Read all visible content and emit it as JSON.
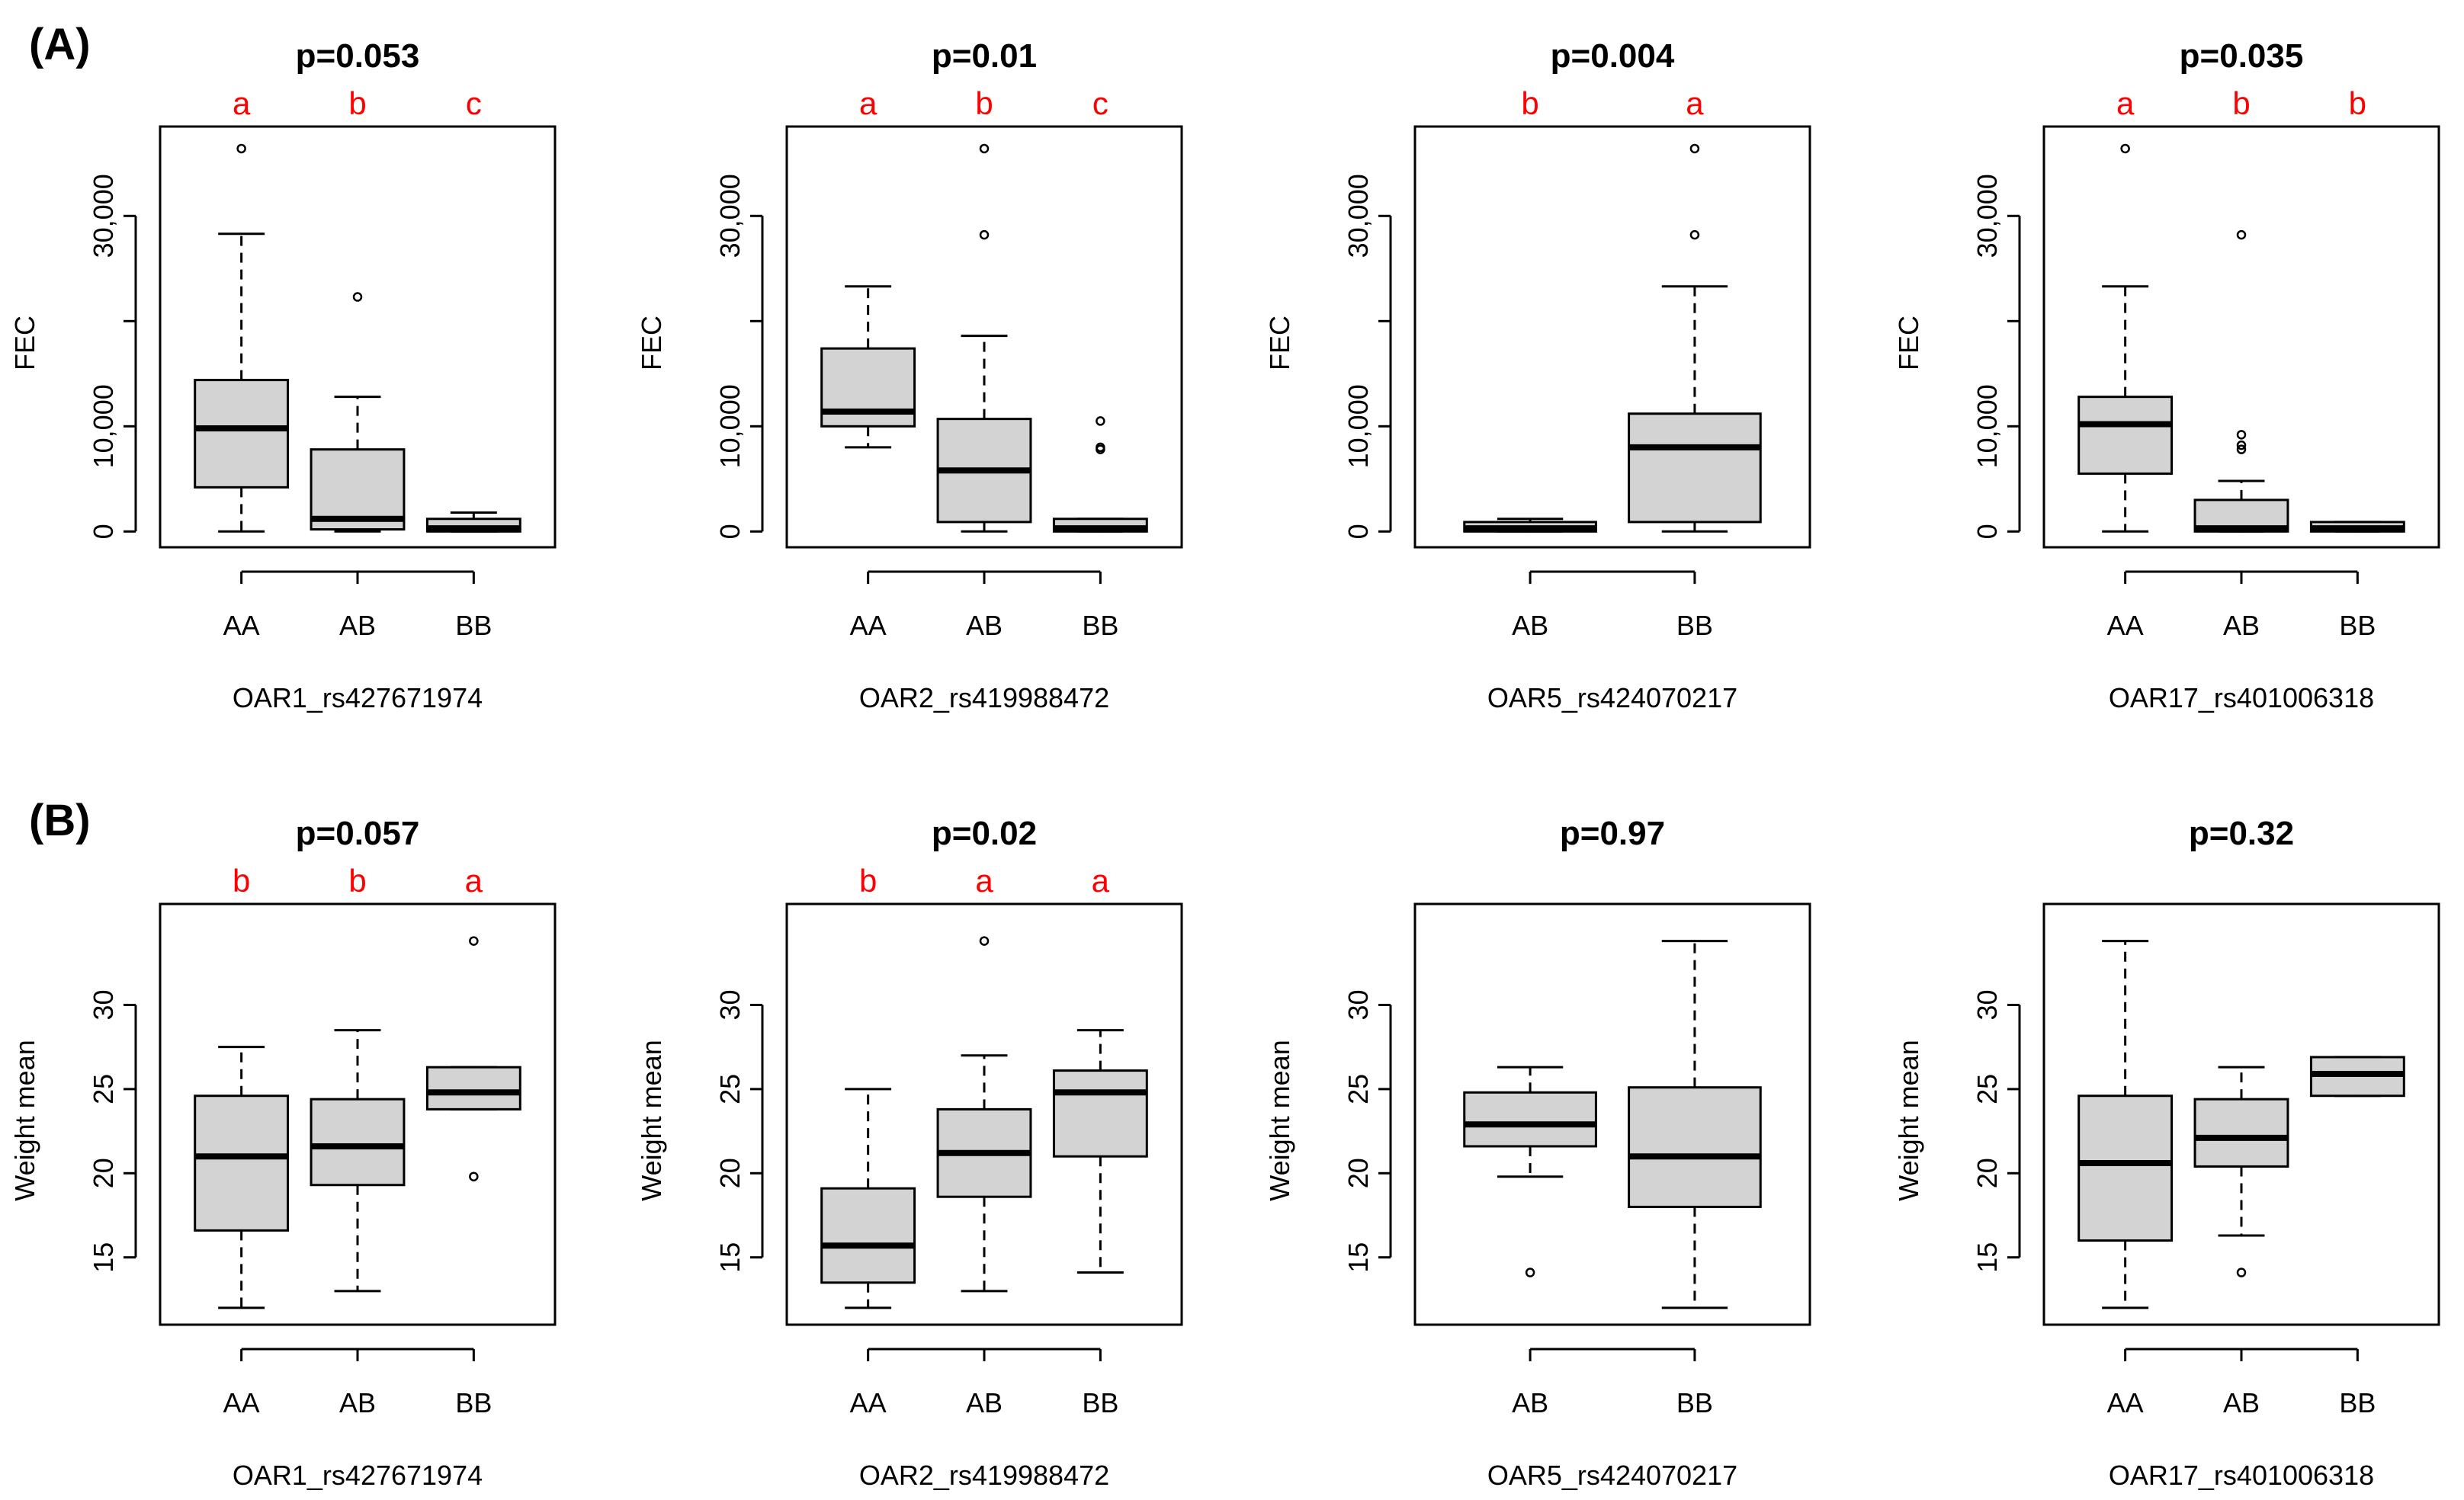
{
  "panel_labels": [
    "(A)",
    "(B)"
  ],
  "colors": {
    "box_fill": "#d3d3d3",
    "line": "#000000",
    "letter": "#ff0000",
    "text": "#000000"
  },
  "chart_data": [
    {
      "type": "boxplot",
      "row": 0,
      "col": 0,
      "title": "p=0.053",
      "xlabel": "OAR1_rs427671974",
      "ylabel": "FEC",
      "ylim": [
        -1500,
        38500
      ],
      "yticks": [
        0,
        10000,
        30000
      ],
      "ytick_labels": [
        "0",
        "10,000",
        "30,000"
      ],
      "ytick_minor": [
        20000
      ],
      "categories": [
        "AA",
        "AB",
        "BB"
      ],
      "letters": [
        "a",
        "b",
        "c"
      ],
      "boxes": [
        {
          "whisker_low": 0,
          "q1": 4200,
          "median": 9800,
          "q3": 14400,
          "whisker_high": 28300,
          "outliers": [
            36400
          ]
        },
        {
          "whisker_low": 0,
          "q1": 200,
          "median": 1200,
          "q3": 7800,
          "whisker_high": 12800,
          "outliers": [
            22300
          ]
        },
        {
          "whisker_low": 0,
          "q1": 0,
          "median": 300,
          "q3": 1200,
          "whisker_high": 1800,
          "outliers": []
        }
      ]
    },
    {
      "type": "boxplot",
      "row": 0,
      "col": 1,
      "title": "p=0.01",
      "xlabel": "OAR2_rs419988472",
      "ylabel": "FEC",
      "ylim": [
        -1500,
        38500
      ],
      "yticks": [
        0,
        10000,
        30000
      ],
      "ytick_labels": [
        "0",
        "10,000",
        "30,000"
      ],
      "ytick_minor": [
        20000
      ],
      "categories": [
        "AA",
        "AB",
        "BB"
      ],
      "letters": [
        "a",
        "b",
        "c"
      ],
      "boxes": [
        {
          "whisker_low": 8000,
          "q1": 10000,
          "median": 11400,
          "q3": 17400,
          "whisker_high": 23300,
          "outliers": []
        },
        {
          "whisker_low": 0,
          "q1": 900,
          "median": 5800,
          "q3": 10700,
          "whisker_high": 18600,
          "outliers": [
            28200,
            36400
          ]
        },
        {
          "whisker_low": 0,
          "q1": 0,
          "median": 300,
          "q3": 1200,
          "whisker_high": 1200,
          "outliers": [
            7800,
            8000,
            10500
          ]
        }
      ]
    },
    {
      "type": "boxplot",
      "row": 0,
      "col": 2,
      "title": "p=0.004",
      "xlabel": "OAR5_rs424070217",
      "ylabel": "FEC",
      "ylim": [
        -1500,
        38500
      ],
      "yticks": [
        0,
        10000,
        30000
      ],
      "ytick_labels": [
        "0",
        "10,000",
        "30,000"
      ],
      "ytick_minor": [
        20000
      ],
      "categories": [
        "AB",
        "BB"
      ],
      "letters": [
        "b",
        "a"
      ],
      "boxes": [
        {
          "whisker_low": 0,
          "q1": 0,
          "median": 300,
          "q3": 900,
          "whisker_high": 1200,
          "outliers": []
        },
        {
          "whisker_low": 0,
          "q1": 900,
          "median": 8000,
          "q3": 11200,
          "whisker_high": 23300,
          "outliers": [
            28200,
            36400
          ]
        }
      ]
    },
    {
      "type": "boxplot",
      "row": 0,
      "col": 3,
      "title": "p=0.035",
      "xlabel": "OAR17_rs401006318",
      "ylabel": "FEC",
      "ylim": [
        -1500,
        38500
      ],
      "yticks": [
        0,
        10000,
        30000
      ],
      "ytick_labels": [
        "0",
        "10,000",
        "30,000"
      ],
      "ytick_minor": [
        20000
      ],
      "categories": [
        "AA",
        "AB",
        "BB"
      ],
      "letters": [
        "a",
        "b",
        "b"
      ],
      "boxes": [
        {
          "whisker_low": 0,
          "q1": 5500,
          "median": 10200,
          "q3": 12800,
          "whisker_high": 23300,
          "outliers": [
            36400
          ]
        },
        {
          "whisker_low": 0,
          "q1": 0,
          "median": 300,
          "q3": 3000,
          "whisker_high": 4800,
          "outliers": [
            7800,
            8200,
            9200,
            28200
          ]
        },
        {
          "whisker_low": 0,
          "q1": 0,
          "median": 300,
          "q3": 900,
          "whisker_high": 900,
          "outliers": []
        }
      ]
    },
    {
      "type": "boxplot",
      "row": 1,
      "col": 0,
      "title": "p=0.057",
      "xlabel": "OAR1_rs427671974",
      "ylabel": "Weight mean",
      "ylim": [
        11,
        36
      ],
      "yticks": [
        15,
        20,
        25,
        30
      ],
      "ytick_labels": [
        "15",
        "20",
        "25",
        "30"
      ],
      "ytick_minor": [],
      "categories": [
        "AA",
        "AB",
        "BB"
      ],
      "letters": [
        "b",
        "b",
        "a"
      ],
      "boxes": [
        {
          "whisker_low": 12,
          "q1": 16.6,
          "median": 21,
          "q3": 24.6,
          "whisker_high": 27.5,
          "outliers": []
        },
        {
          "whisker_low": 13,
          "q1": 19.3,
          "median": 21.6,
          "q3": 24.4,
          "whisker_high": 28.5,
          "outliers": []
        },
        {
          "whisker_low": 23.8,
          "q1": 23.8,
          "median": 24.8,
          "q3": 26.3,
          "whisker_high": 26.3,
          "outliers": [
            19.8,
            33.8
          ]
        }
      ]
    },
    {
      "type": "boxplot",
      "row": 1,
      "col": 1,
      "title": "p=0.02",
      "xlabel": "OAR2_rs419988472",
      "ylabel": "Weight mean",
      "ylim": [
        11,
        36
      ],
      "yticks": [
        15,
        20,
        25,
        30
      ],
      "ytick_labels": [
        "15",
        "20",
        "25",
        "30"
      ],
      "ytick_minor": [],
      "categories": [
        "AA",
        "AB",
        "BB"
      ],
      "letters": [
        "b",
        "a",
        "a"
      ],
      "boxes": [
        {
          "whisker_low": 12,
          "q1": 13.5,
          "median": 15.7,
          "q3": 19.1,
          "whisker_high": 25,
          "outliers": []
        },
        {
          "whisker_low": 13,
          "q1": 18.6,
          "median": 21.2,
          "q3": 23.8,
          "whisker_high": 27,
          "outliers": [
            33.8
          ]
        },
        {
          "whisker_low": 14.1,
          "q1": 21,
          "median": 24.8,
          "q3": 26.1,
          "whisker_high": 28.5,
          "outliers": []
        }
      ]
    },
    {
      "type": "boxplot",
      "row": 1,
      "col": 2,
      "title": "p=0.97",
      "xlabel": "OAR5_rs424070217",
      "ylabel": "Weight mean",
      "ylim": [
        11,
        36
      ],
      "yticks": [
        15,
        20,
        25,
        30
      ],
      "ytick_labels": [
        "15",
        "20",
        "25",
        "30"
      ],
      "ytick_minor": [],
      "categories": [
        "AB",
        "BB"
      ],
      "letters": [],
      "boxes": [
        {
          "whisker_low": 19.8,
          "q1": 21.6,
          "median": 22.9,
          "q3": 24.8,
          "whisker_high": 26.3,
          "outliers": [
            14.1
          ]
        },
        {
          "whisker_low": 12,
          "q1": 18,
          "median": 21,
          "q3": 25.1,
          "whisker_high": 33.8,
          "outliers": []
        }
      ]
    },
    {
      "type": "boxplot",
      "row": 1,
      "col": 3,
      "title": "p=0.32",
      "xlabel": "OAR17_rs401006318",
      "ylabel": "Weight mean",
      "ylim": [
        11,
        36
      ],
      "yticks": [
        15,
        20,
        25,
        30
      ],
      "ytick_labels": [
        "15",
        "20",
        "25",
        "30"
      ],
      "ytick_minor": [],
      "categories": [
        "AA",
        "AB",
        "BB"
      ],
      "letters": [],
      "boxes": [
        {
          "whisker_low": 12,
          "q1": 16,
          "median": 20.6,
          "q3": 24.6,
          "whisker_high": 33.8,
          "outliers": []
        },
        {
          "whisker_low": 16.3,
          "q1": 20.4,
          "median": 22.1,
          "q3": 24.4,
          "whisker_high": 26.3,
          "outliers": [
            14.1
          ]
        },
        {
          "whisker_low": 24.6,
          "q1": 24.6,
          "median": 25.9,
          "q3": 26.9,
          "whisker_high": 26.9,
          "outliers": []
        }
      ]
    }
  ]
}
